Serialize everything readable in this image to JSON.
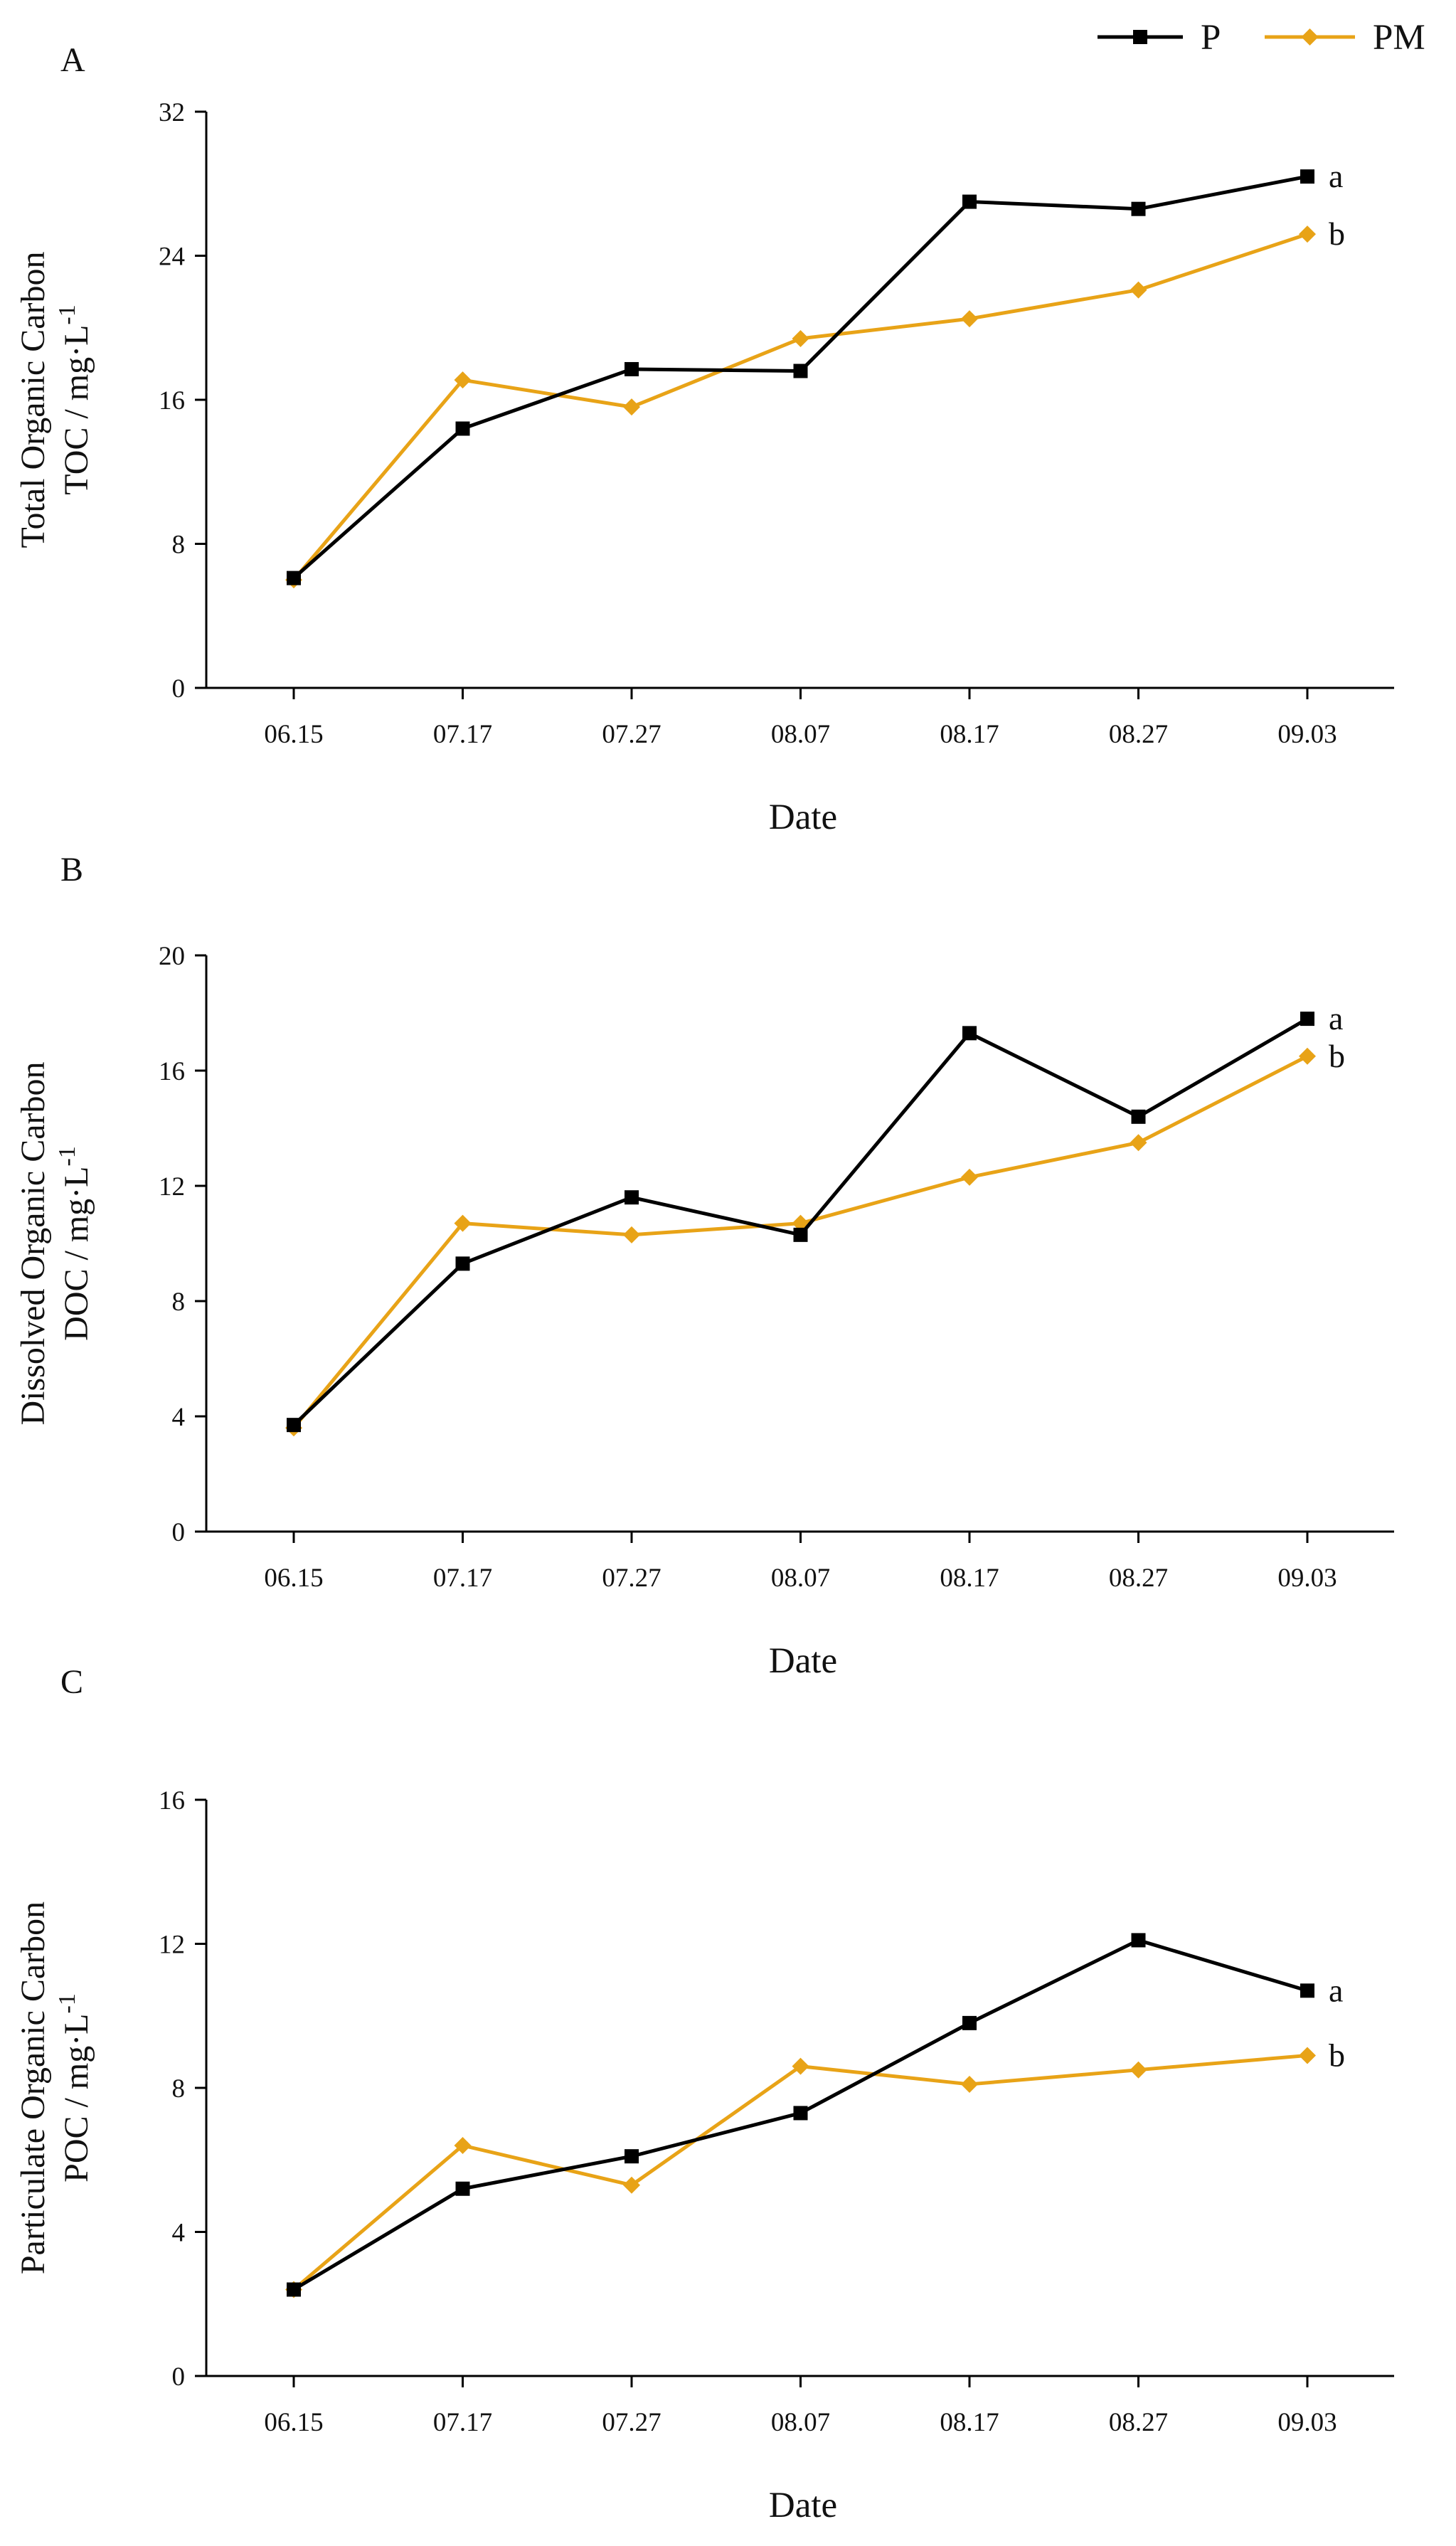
{
  "colors": {
    "P": "#000000",
    "PM": "#E8A317",
    "axis": "#000000"
  },
  "legend": [
    {
      "key": "P",
      "label": "P"
    },
    {
      "key": "PM",
      "label": "PM"
    }
  ],
  "chart_data": [
    {
      "type": "line",
      "panel": "A",
      "ylabel_line1": "Total Organic Carbon",
      "ylabel_line2": "TOC / mg·L",
      "ylabel_sup": "-1",
      "xlabel": "Date",
      "categories": [
        "06.15",
        "07.17",
        "07.27",
        "08.07",
        "08.17",
        "08.27",
        "09.03"
      ],
      "yticks": [
        0,
        8,
        16,
        24,
        32
      ],
      "ylim": [
        0,
        32
      ],
      "series": [
        {
          "name": "P",
          "values": [
            6.1,
            14.4,
            17.7,
            17.6,
            27.0,
            26.6,
            28.4
          ],
          "end_label": "a"
        },
        {
          "name": "PM",
          "values": [
            6.0,
            17.1,
            15.6,
            19.4,
            20.5,
            22.1,
            25.2
          ],
          "end_label": "b"
        }
      ]
    },
    {
      "type": "line",
      "panel": "B",
      "ylabel_line1": "Dissolved Organic Carbon",
      "ylabel_line2": "DOC / mg·L",
      "ylabel_sup": "-1",
      "xlabel": "Date",
      "categories": [
        "06.15",
        "07.17",
        "07.27",
        "08.07",
        "08.17",
        "08.27",
        "09.03"
      ],
      "yticks": [
        0,
        4,
        8,
        12,
        16,
        20
      ],
      "ylim": [
        0,
        20
      ],
      "series": [
        {
          "name": "P",
          "values": [
            3.7,
            9.3,
            11.6,
            10.3,
            17.3,
            14.4,
            17.8
          ],
          "end_label": "a"
        },
        {
          "name": "PM",
          "values": [
            3.6,
            10.7,
            10.3,
            10.7,
            12.3,
            13.5,
            16.5
          ],
          "end_label": "b"
        }
      ]
    },
    {
      "type": "line",
      "panel": "C",
      "ylabel_line1": "Particulate Organic Carbon",
      "ylabel_line2": "POC / mg·L",
      "ylabel_sup": "-1",
      "xlabel": "Date",
      "categories": [
        "06.15",
        "07.17",
        "07.27",
        "08.07",
        "08.17",
        "08.27",
        "09.03"
      ],
      "yticks": [
        0,
        4,
        8,
        12,
        16
      ],
      "ylim": [
        0,
        16
      ],
      "series": [
        {
          "name": "P",
          "values": [
            2.4,
            5.2,
            6.1,
            7.3,
            9.8,
            12.1,
            10.7
          ],
          "end_label": "a"
        },
        {
          "name": "PM",
          "values": [
            2.4,
            6.4,
            5.3,
            8.6,
            8.1,
            8.5,
            8.9
          ],
          "end_label": "b"
        }
      ]
    }
  ]
}
